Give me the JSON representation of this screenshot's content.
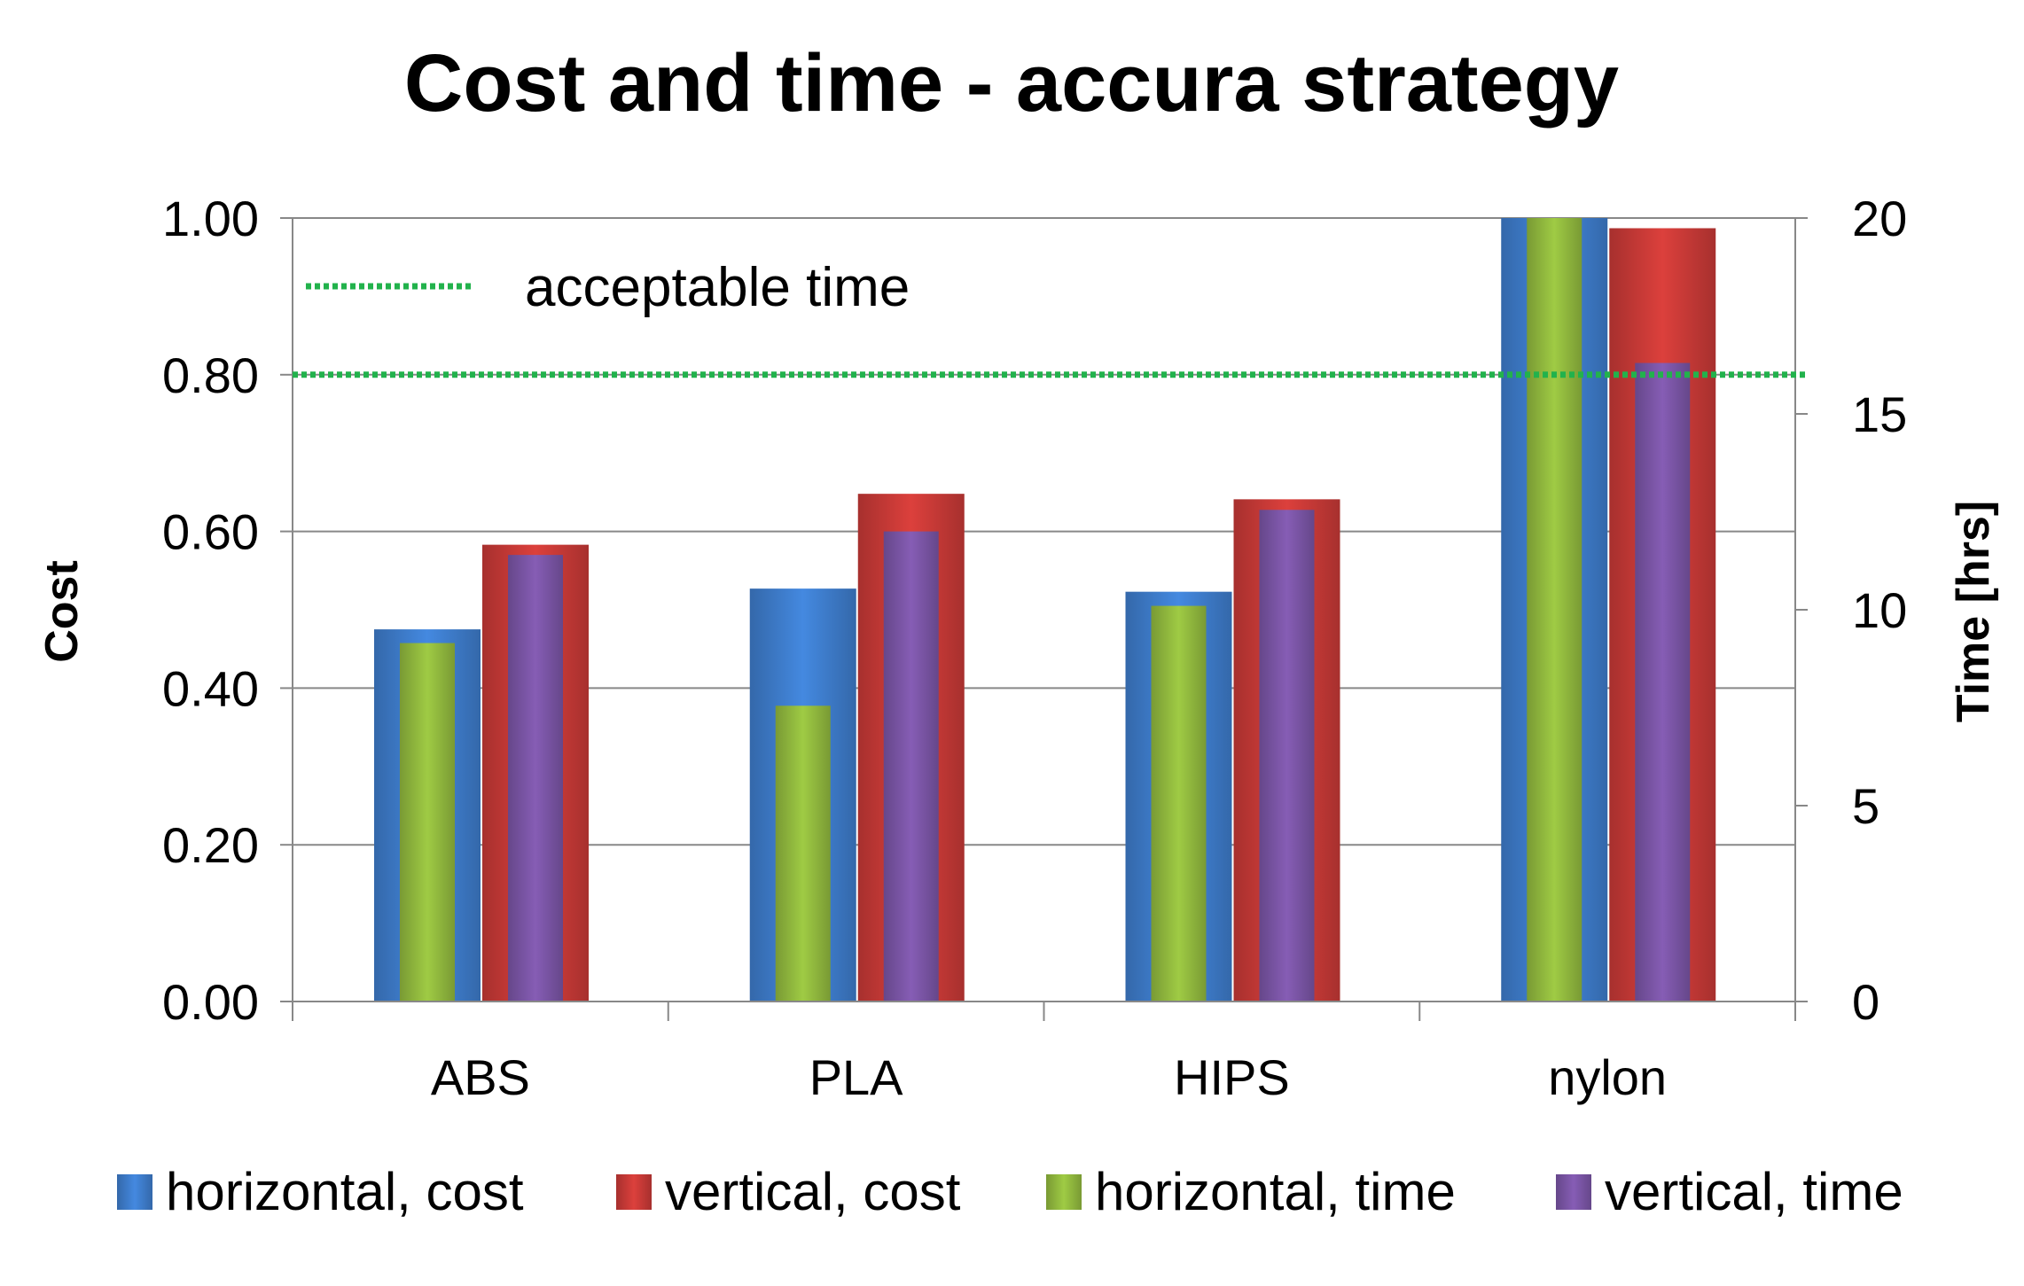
{
  "chart_data": {
    "type": "bar",
    "title": "Cost and time - accura strategy",
    "categories": [
      "ABS",
      "PLA",
      "HIPS",
      "nylon"
    ],
    "y_left": {
      "label": "Cost",
      "range": [
        0,
        1
      ],
      "ticks": [
        "0.00",
        "0.20",
        "0.40",
        "0.60",
        "0.80",
        "1.00"
      ]
    },
    "y_right": {
      "label": "Time [hrs]",
      "range": [
        0,
        20
      ],
      "ticks": [
        "0",
        "5",
        "10",
        "15",
        "20"
      ]
    },
    "series": [
      {
        "name": "horizontal, cost",
        "axis": "left",
        "color": "#3f7fcf",
        "values": [
          0.475,
          0.527,
          0.523,
          1.05
        ]
      },
      {
        "name": "vertical, cost",
        "axis": "left",
        "color": "#cc3b38",
        "values": [
          0.583,
          0.648,
          0.641,
          0.987
        ]
      },
      {
        "name": "horizontal, time",
        "axis": "right",
        "color": "#93bc3f",
        "values": [
          9.15,
          7.55,
          10.1,
          21.0
        ]
      },
      {
        "name": "vertical, time",
        "axis": "right",
        "color": "#7c56a8",
        "values": [
          11.4,
          12.0,
          12.55,
          16.3
        ]
      }
    ],
    "reference_line": {
      "label": "acceptable time",
      "axis": "right",
      "value": 16,
      "color": "#22b24c",
      "style": "dotted"
    },
    "grid": true,
    "legend_position": "bottom"
  }
}
